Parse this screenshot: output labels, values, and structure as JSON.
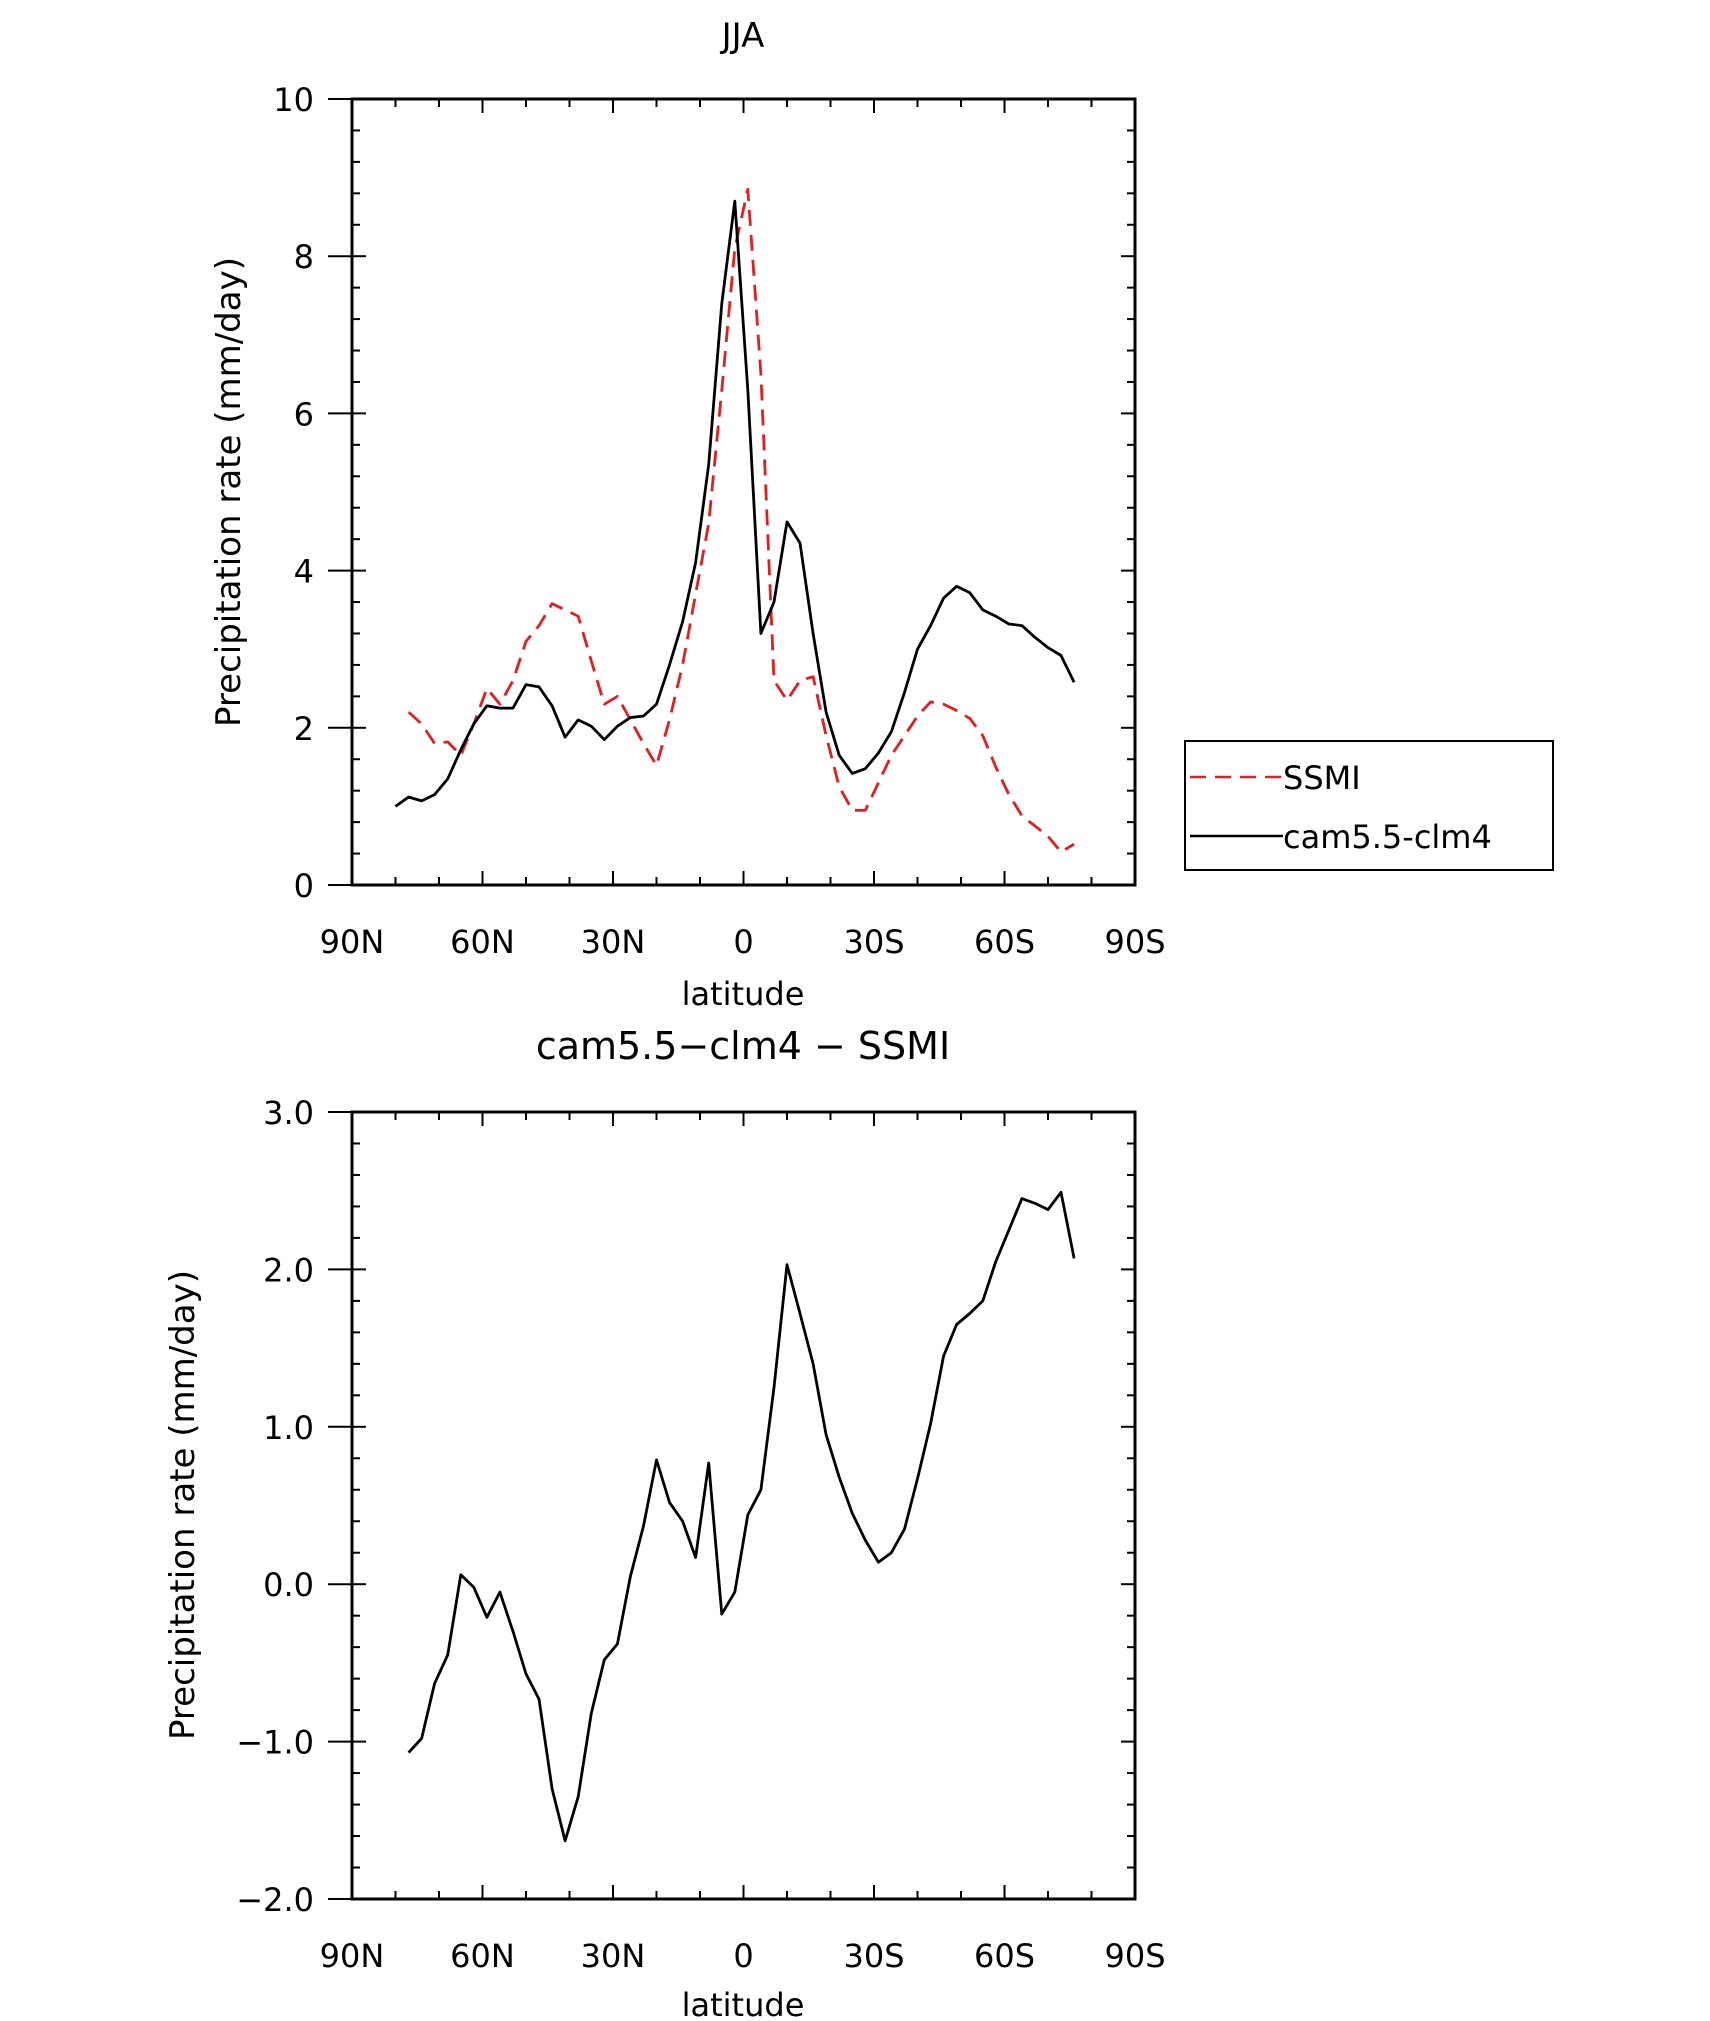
{
  "chart_data": [
    {
      "type": "line",
      "title": "JJA",
      "xlabel": "latitude",
      "ylabel": "Precipitation rate (mm/day)",
      "xlim": [
        -90,
        90
      ],
      "ylim": [
        0,
        10
      ],
      "x_ticks": [
        -90,
        -60,
        -30,
        0,
        30,
        60,
        90
      ],
      "x_tick_labels": [
        "90N",
        "60N",
        "30N",
        "0",
        "30S",
        "60S",
        "90S"
      ],
      "y_ticks": [
        0,
        2,
        4,
        6,
        8,
        10
      ],
      "y_tick_labels": [
        "0",
        "2",
        "4",
        "6",
        "8",
        "10"
      ],
      "legend_position": "right",
      "series": [
        {
          "name": "SSMI",
          "color": "#e02020",
          "dash": "dashed",
          "points": [
            [
              -77,
              2.2
            ],
            [
              -74,
              2.05
            ],
            [
              -71,
              1.8
            ],
            [
              -68,
              1.82
            ],
            [
              -65,
              1.65
            ],
            [
              -62,
              2.05
            ],
            [
              -59,
              2.5
            ],
            [
              -56,
              2.3
            ],
            [
              -53,
              2.6
            ],
            [
              -50,
              3.1
            ],
            [
              -47,
              3.3
            ],
            [
              -44,
              3.58
            ],
            [
              -41,
              3.5
            ],
            [
              -38,
              3.42
            ],
            [
              -35,
              2.85
            ],
            [
              -32,
              2.3
            ],
            [
              -29,
              2.4
            ],
            [
              -26,
              2.1
            ],
            [
              -23,
              1.8
            ],
            [
              -20,
              1.52
            ],
            [
              -17,
              2.1
            ],
            [
              -14,
              2.8
            ],
            [
              -11,
              3.7
            ],
            [
              -8,
              4.6
            ],
            [
              -5,
              6.3
            ],
            [
              -2,
              8.1
            ],
            [
              1,
              8.85
            ],
            [
              4,
              6.5
            ],
            [
              7,
              2.6
            ],
            [
              10,
              2.35
            ],
            [
              13,
              2.6
            ],
            [
              16,
              2.65
            ],
            [
              19,
              1.9
            ],
            [
              22,
              1.25
            ],
            [
              25,
              0.95
            ],
            [
              28,
              0.95
            ],
            [
              31,
              1.3
            ],
            [
              34,
              1.65
            ],
            [
              37,
              1.9
            ],
            [
              40,
              2.15
            ],
            [
              43,
              2.33
            ],
            [
              46,
              2.3
            ],
            [
              49,
              2.22
            ],
            [
              52,
              2.12
            ],
            [
              55,
              1.9
            ],
            [
              58,
              1.5
            ],
            [
              61,
              1.15
            ],
            [
              64,
              0.88
            ],
            [
              67,
              0.75
            ],
            [
              70,
              0.62
            ],
            [
              73,
              0.42
            ],
            [
              76,
              0.52
            ]
          ]
        },
        {
          "name": "cam5.5-clm4",
          "color": "#000000",
          "dash": "solid",
          "points": [
            [
              -80,
              1.0
            ],
            [
              -77,
              1.12
            ],
            [
              -74,
              1.07
            ],
            [
              -71,
              1.15
            ],
            [
              -68,
              1.35
            ],
            [
              -65,
              1.72
            ],
            [
              -62,
              2.05
            ],
            [
              -59,
              2.28
            ],
            [
              -56,
              2.25
            ],
            [
              -53,
              2.25
            ],
            [
              -50,
              2.55
            ],
            [
              -47,
              2.52
            ],
            [
              -44,
              2.28
            ],
            [
              -41,
              1.88
            ],
            [
              -38,
              2.1
            ],
            [
              -35,
              2.02
            ],
            [
              -32,
              1.85
            ],
            [
              -29,
              2.02
            ],
            [
              -26,
              2.13
            ],
            [
              -23,
              2.15
            ],
            [
              -20,
              2.3
            ],
            [
              -17,
              2.8
            ],
            [
              -14,
              3.35
            ],
            [
              -11,
              4.1
            ],
            [
              -8,
              5.35
            ],
            [
              -5,
              7.4
            ],
            [
              -2,
              8.7
            ],
            [
              1,
              6.3
            ],
            [
              4,
              3.2
            ],
            [
              7,
              3.6
            ],
            [
              10,
              4.62
            ],
            [
              13,
              4.35
            ],
            [
              16,
              3.2
            ],
            [
              19,
              2.2
            ],
            [
              22,
              1.65
            ],
            [
              25,
              1.42
            ],
            [
              28,
              1.48
            ],
            [
              31,
              1.68
            ],
            [
              34,
              1.95
            ],
            [
              37,
              2.45
            ],
            [
              40,
              3.0
            ],
            [
              43,
              3.3
            ],
            [
              46,
              3.65
            ],
            [
              49,
              3.8
            ],
            [
              52,
              3.72
            ],
            [
              55,
              3.5
            ],
            [
              58,
              3.42
            ],
            [
              61,
              3.32
            ],
            [
              64,
              3.3
            ],
            [
              67,
              3.15
            ],
            [
              70,
              3.02
            ],
            [
              73,
              2.92
            ],
            [
              76,
              2.58
            ]
          ]
        }
      ]
    },
    {
      "type": "line",
      "title": "cam5.5−clm4 − SSMI",
      "xlabel": "latitude",
      "ylabel": "Precipitation rate (mm/day)",
      "xlim": [
        -90,
        90
      ],
      "ylim": [
        -2,
        3
      ],
      "x_ticks": [
        -90,
        -60,
        -30,
        0,
        30,
        60,
        90
      ],
      "x_tick_labels": [
        "90N",
        "60N",
        "30N",
        "0",
        "30S",
        "60S",
        "90S"
      ],
      "y_ticks": [
        -2,
        -1,
        0,
        1,
        2,
        3
      ],
      "y_tick_labels": [
        "−2.0",
        "−1.0",
        "0.0",
        "1.0",
        "2.0",
        "3.0"
      ],
      "series": [
        {
          "color": "#000000",
          "dash": "solid",
          "points": [
            [
              -77,
              -1.07
            ],
            [
              -74,
              -0.98
            ],
            [
              -71,
              -0.63
            ],
            [
              -68,
              -0.45
            ],
            [
              -65,
              0.06
            ],
            [
              -62,
              -0.02
            ],
            [
              -59,
              -0.21
            ],
            [
              -56,
              -0.05
            ],
            [
              -53,
              -0.3
            ],
            [
              -50,
              -0.57
            ],
            [
              -47,
              -0.73
            ],
            [
              -44,
              -1.3
            ],
            [
              -41,
              -1.63
            ],
            [
              -38,
              -1.35
            ],
            [
              -35,
              -0.82
            ],
            [
              -32,
              -0.48
            ],
            [
              -29,
              -0.38
            ],
            [
              -26,
              0.05
            ],
            [
              -23,
              0.37
            ],
            [
              -20,
              0.79
            ],
            [
              -17,
              0.52
            ],
            [
              -14,
              0.4
            ],
            [
              -11,
              0.17
            ],
            [
              -8,
              0.77
            ],
            [
              -5,
              -0.19
            ],
            [
              -2,
              -0.05
            ],
            [
              1,
              0.44
            ],
            [
              4,
              0.6
            ],
            [
              7,
              1.25
            ],
            [
              10,
              2.03
            ],
            [
              13,
              1.72
            ],
            [
              16,
              1.4
            ],
            [
              19,
              0.95
            ],
            [
              22,
              0.68
            ],
            [
              25,
              0.45
            ],
            [
              28,
              0.28
            ],
            [
              31,
              0.14
            ],
            [
              34,
              0.2
            ],
            [
              37,
              0.35
            ],
            [
              40,
              0.67
            ],
            [
              43,
              1.02
            ],
            [
              46,
              1.45
            ],
            [
              49,
              1.65
            ],
            [
              52,
              1.72
            ],
            [
              55,
              1.8
            ],
            [
              58,
              2.05
            ],
            [
              61,
              2.25
            ],
            [
              64,
              2.45
            ],
            [
              67,
              2.42
            ],
            [
              70,
              2.38
            ],
            [
              73,
              2.49
            ],
            [
              76,
              2.07
            ]
          ]
        }
      ]
    }
  ]
}
